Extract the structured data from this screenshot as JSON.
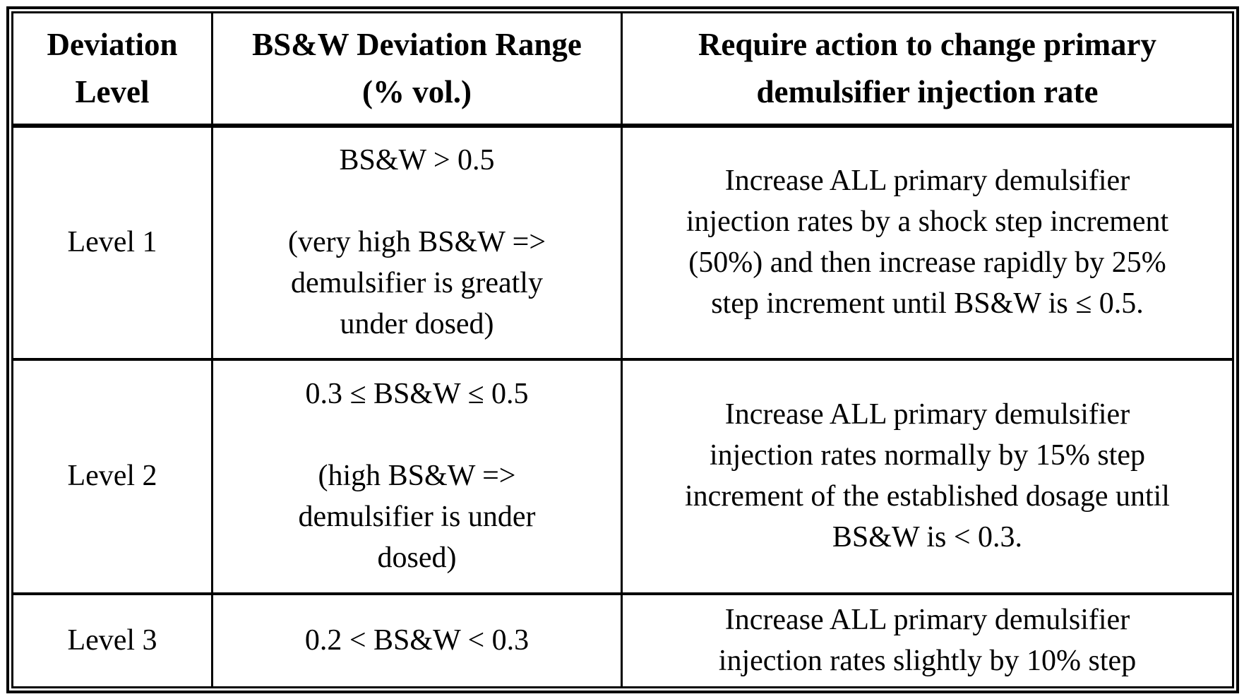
{
  "colors": {
    "border": "#000000",
    "background": "#ffffff",
    "text": "#000000"
  },
  "table": {
    "columns": [
      {
        "label": "Deviation\nLevel"
      },
      {
        "label": "BS&W Deviation Range\n(% vol.)"
      },
      {
        "label": "Require action to change primary\ndemulsifier injection rate"
      }
    ],
    "rows": [
      {
        "level": "Level 1",
        "range": "BS&W > 0.5\n\n(very high BS&W =>\ndemulsifier is greatly\nunder dosed)",
        "action": "Increase ALL primary demulsifier\ninjection rates by a shock step increment\n(50%) and then increase rapidly by 25%\nstep increment until BS&W is ≤ 0.5."
      },
      {
        "level": "Level 2",
        "range": "0.3 ≤ BS&W ≤ 0.5\n\n(high BS&W =>\ndemulsifier is under\ndosed)",
        "action": "Increase ALL primary demulsifier\ninjection rates normally by 15% step\nincrement of the established dosage until\nBS&W is < 0.3."
      },
      {
        "level": "Level 3",
        "range": "0.2 < BS&W < 0.3",
        "action": "Increase ALL primary demulsifier\ninjection rates slightly by 10% step"
      }
    ]
  }
}
